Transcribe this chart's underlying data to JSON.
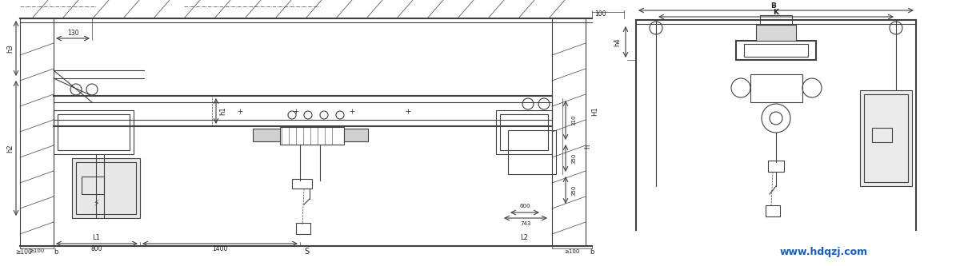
{
  "bg_color": "#ffffff",
  "line_color": "#404040",
  "line_width": 0.8,
  "thick_line": 1.5,
  "text_color": "#202020",
  "blue_text": "#1a5fb4",
  "fig_width": 12.0,
  "fig_height": 3.33,
  "watermark": "www.hdqzj.com",
  "labels": {
    "h1": "h1",
    "h2": "h2",
    "h3": "h3",
    "h4": "h4",
    "H1": "H1",
    "L1": "L1",
    "L2": "L2",
    "B": "B",
    "K": "K",
    "S": "S",
    "b_left": "b",
    "b_right": "b",
    "w100_left": "≥100",
    "w100_bottom": "≥100",
    "w100_right": "≥100",
    "dim_130": "130",
    "dim_800": "800",
    "dim_1400": "1400",
    "dim_600": "600",
    "dim_743": "743",
    "dim_310": "310",
    "dim_350a": "350",
    "dim_350b": "350",
    "dim_100top": "100",
    "dim_100right": "100",
    "h_label": "h"
  }
}
